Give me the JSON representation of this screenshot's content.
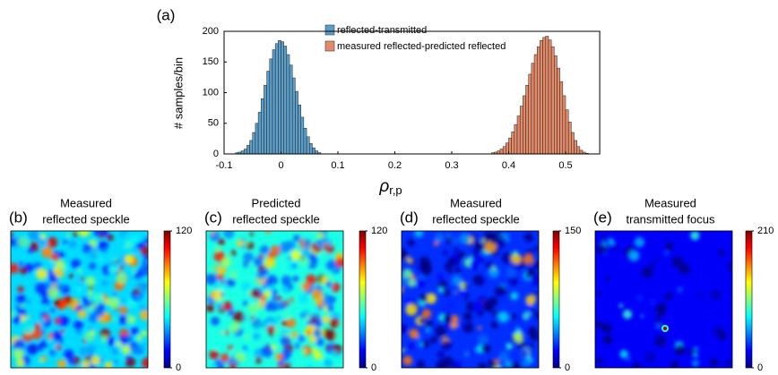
{
  "chart_data": [
    {
      "type": "histogram",
      "label": "(a)",
      "ylabel": "# samples/bin",
      "xlabel": {
        "main": "ρ",
        "sub": "r,p"
      },
      "xlim": [
        -0.1,
        0.56
      ],
      "xticks": [
        -0.1,
        0,
        0.1,
        0.2,
        0.3,
        0.4,
        0.5
      ],
      "ylim": [
        0,
        200
      ],
      "yticks": [
        0,
        50,
        100,
        150,
        200
      ],
      "series": [
        {
          "name": "reflected-transmitted",
          "color": "#5a9ec9",
          "bins": [
            -0.08,
            -0.075,
            -0.07,
            -0.065,
            -0.06,
            -0.055,
            -0.05,
            -0.045,
            -0.04,
            -0.035,
            -0.03,
            -0.025,
            -0.02,
            -0.015,
            -0.01,
            -0.005,
            0,
            0.005,
            0.01,
            0.015,
            0.02,
            0.025,
            0.03,
            0.035,
            0.04,
            0.045,
            0.05,
            0.055,
            0.06,
            0.065,
            0.07
          ],
          "values": [
            2,
            3,
            5,
            8,
            14,
            22,
            35,
            50,
            68,
            90,
            112,
            135,
            155,
            170,
            180,
            185,
            183,
            176,
            162,
            145,
            124,
            102,
            80,
            60,
            42,
            28,
            17,
            10,
            5,
            2
          ]
        },
        {
          "name": "measured reflected-predicted reflected",
          "color": "#e48a68",
          "bins": [
            0.37,
            0.375,
            0.38,
            0.385,
            0.39,
            0.395,
            0.4,
            0.405,
            0.41,
            0.415,
            0.42,
            0.425,
            0.43,
            0.435,
            0.44,
            0.445,
            0.45,
            0.455,
            0.46,
            0.465,
            0.47,
            0.475,
            0.48,
            0.485,
            0.49,
            0.495,
            0.5,
            0.505,
            0.51,
            0.515,
            0.52,
            0.525,
            0.53,
            0.535,
            0.54
          ],
          "values": [
            2,
            3,
            5,
            8,
            12,
            18,
            26,
            36,
            48,
            62,
            78,
            95,
            112,
            130,
            148,
            162,
            175,
            185,
            190,
            192,
            186,
            175,
            160,
            140,
            118,
            95,
            72,
            52,
            35,
            22,
            12,
            6,
            3,
            1
          ]
        }
      ]
    },
    {
      "type": "image",
      "label": "(b)",
      "title": [
        "Measured",
        "reflected speckle"
      ],
      "clim": [
        0,
        120
      ],
      "cticks": [
        0,
        120
      ],
      "colormap": "jet"
    },
    {
      "type": "image",
      "label": "(c)",
      "title": [
        "Predicted",
        "reflected speckle"
      ],
      "clim": [
        0,
        120
      ],
      "cticks": [
        0,
        120
      ],
      "colormap": "jet"
    },
    {
      "type": "image",
      "label": "(d)",
      "title": [
        "Measured",
        "reflected speckle"
      ],
      "clim": [
        0,
        150
      ],
      "cticks": [
        0,
        150
      ],
      "colormap": "jet"
    },
    {
      "type": "image",
      "label": "(e)",
      "title": [
        "Measured",
        "transmitted focus"
      ],
      "clim": [
        0,
        210
      ],
      "cticks": [
        0,
        210
      ],
      "colormap": "jet"
    }
  ]
}
